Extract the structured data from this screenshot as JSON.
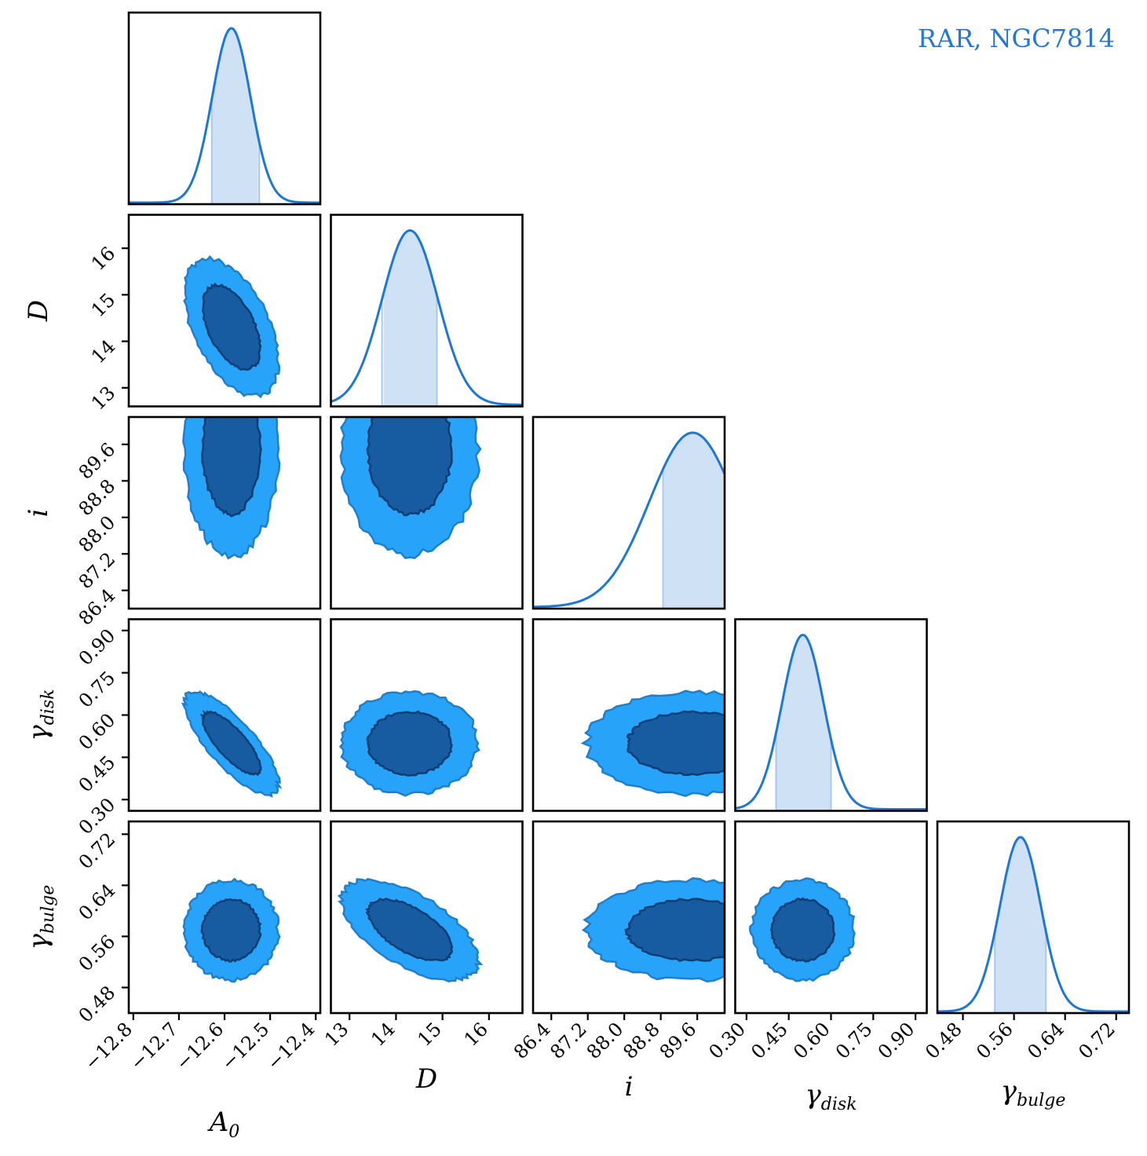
{
  "title": "RAR, NGC7814",
  "colors": {
    "title": "#2676d3",
    "line": "#1f77d4",
    "band": "#cfe2f5",
    "band_edge": "#a8c8ec",
    "outer_fill": "#27a4fa",
    "outer_edge": "#1f7fc9",
    "inner_fill": "#175ba1",
    "inner_edge": "#0d3e73"
  },
  "chart_data": {
    "type": "corner",
    "title": "RAR, NGC7814",
    "parameters": [
      {
        "key": "A0",
        "label_main": "A",
        "label_sub": "0",
        "range": [
          -12.81,
          -12.39
        ],
        "ticks": [
          -12.8,
          -12.7,
          -12.6,
          -12.5,
          -12.4
        ],
        "tick_labels": [
          "−12.8",
          "−12.7",
          "−12.6",
          "−12.5",
          "−12.4"
        ],
        "mean": -12.585,
        "sd": 0.042,
        "band": [
          -12.628,
          -12.524
        ]
      },
      {
        "key": "D",
        "label_main": "D",
        "label_sub": "",
        "range": [
          12.6,
          16.72
        ],
        "ticks": [
          13,
          14,
          15,
          16
        ],
        "tick_labels": [
          "13",
          "14",
          "15",
          "16"
        ],
        "mean": 14.3,
        "sd": 0.6,
        "band": [
          13.7,
          14.88
        ]
      },
      {
        "key": "i",
        "label_main": "i",
        "label_sub": "",
        "range": [
          86.0,
          90.2
        ],
        "ticks": [
          86.4,
          87.2,
          88.0,
          88.8,
          89.6
        ],
        "tick_labels": [
          "86.4",
          "87.2",
          "88.0",
          "88.8",
          "89.6"
        ],
        "mean": 89.5,
        "sd": 0.95,
        "band": [
          88.85,
          90.2
        ]
      },
      {
        "key": "gamma_disk",
        "label_main": "γ",
        "label_sub": "disk",
        "range": [
          0.26,
          0.94
        ],
        "ticks": [
          0.3,
          0.45,
          0.6,
          0.75,
          0.9
        ],
        "tick_labels": [
          "0.30",
          "0.45",
          "0.60",
          "0.75",
          "0.90"
        ],
        "mean": 0.5,
        "sd": 0.074,
        "band": [
          0.405,
          0.6
        ]
      },
      {
        "key": "gamma_bulge",
        "label_main": "γ",
        "label_sub": "bulge",
        "range": [
          0.44,
          0.74
        ],
        "ticks": [
          0.48,
          0.56,
          0.64,
          0.72
        ],
        "tick_labels": [
          "0.48",
          "0.56",
          "0.64",
          "0.72"
        ],
        "mean": 0.57,
        "sd": 0.032,
        "band": [
          0.53,
          0.61
        ]
      }
    ],
    "correlations": [
      {
        "row": 1,
        "col": 0,
        "rho": -0.5
      },
      {
        "row": 2,
        "col": 0,
        "rho": 0.0
      },
      {
        "row": 2,
        "col": 1,
        "rho": 0.0
      },
      {
        "row": 3,
        "col": 0,
        "rho": -0.78
      },
      {
        "row": 3,
        "col": 1,
        "rho": 0.0
      },
      {
        "row": 3,
        "col": 2,
        "rho": 0.0
      },
      {
        "row": 4,
        "col": 0,
        "rho": 0.0
      },
      {
        "row": 4,
        "col": 1,
        "rho": -0.6
      },
      {
        "row": 4,
        "col": 2,
        "rho": 0.0
      },
      {
        "row": 4,
        "col": 3,
        "rho": 0.0
      }
    ],
    "contour_levels_sigma": [
      1,
      2
    ],
    "legend": "none",
    "grid": false
  }
}
